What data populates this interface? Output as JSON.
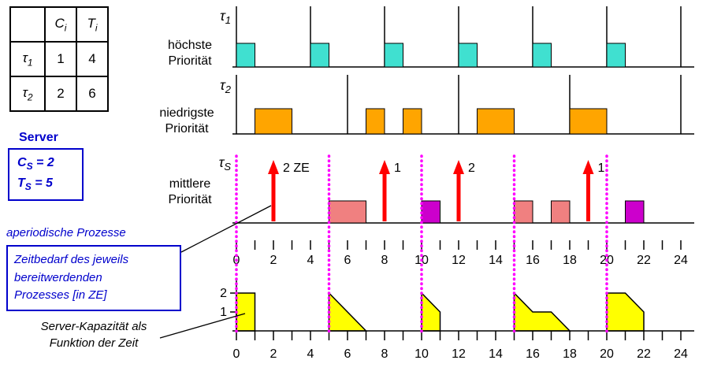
{
  "colors": {
    "tau1_block": "#40E0D0",
    "tau2_block": "#FFA500",
    "server_block_2ze": "#F08080",
    "server_block_1ze": "#CC00CC",
    "request_arrow": "#FF0000",
    "server_period_line": "#FF00FF",
    "capacity_fill": "#FFFF00",
    "annotation_blue": "#0000CC"
  },
  "table": {
    "headers": [
      {
        "base": "C",
        "sub": "i"
      },
      {
        "base": "T",
        "sub": "i"
      }
    ],
    "rows": [
      {
        "task_base": "τ",
        "task_sub": "1",
        "c": "1",
        "t": "4"
      },
      {
        "task_base": "τ",
        "task_sub": "2",
        "c": "2",
        "t": "6"
      }
    ]
  },
  "server_panel": {
    "title": "Server",
    "lines": [
      {
        "base": "C",
        "sub": "S",
        "rest": " = 2"
      },
      {
        "base": "T",
        "sub": "S",
        "rest": " = 5"
      }
    ]
  },
  "notes": {
    "aperiodic": "aperiodische Prozesse",
    "demand_box": [
      "Zeitbedarf des jeweils",
      "bereitwerdenden",
      "Prozesses [in ZE]"
    ],
    "capacity_note": [
      "Server-Kapazität als",
      "Funktion der Zeit"
    ]
  },
  "timelines": [
    {
      "id": "tau1",
      "label_base": "τ",
      "label_sub": "1",
      "priority": [
        "höchste",
        "Priorität"
      ],
      "arrivals": [
        0,
        4,
        8,
        12,
        16,
        20,
        24
      ],
      "blocks": [
        {
          "start": 0,
          "end": 1
        },
        {
          "start": 4,
          "end": 5
        },
        {
          "start": 8,
          "end": 9
        },
        {
          "start": 12,
          "end": 13
        },
        {
          "start": 16,
          "end": 17
        },
        {
          "start": 20,
          "end": 21
        }
      ],
      "block_color": "#40E0D0"
    },
    {
      "id": "tau2",
      "label_base": "τ",
      "label_sub": "2",
      "priority": [
        "niedrigste",
        "Priorität"
      ],
      "arrivals": [
        0,
        6,
        12,
        18,
        24
      ],
      "blocks": [
        {
          "start": 1,
          "end": 3
        },
        {
          "start": 7,
          "end": 8
        },
        {
          "start": 9,
          "end": 10
        },
        {
          "start": 13,
          "end": 15
        },
        {
          "start": 18,
          "end": 20
        }
      ],
      "block_color": "#FFA500"
    },
    {
      "id": "tauS",
      "label_base": "τ",
      "label_sub": "S",
      "priority": [
        "mittlere",
        "Priorität"
      ],
      "arrivals": [],
      "blocks": [
        {
          "start": 5,
          "end": 7,
          "color": "#F08080"
        },
        {
          "start": 10,
          "end": 11,
          "color": "#CC00CC"
        },
        {
          "start": 15,
          "end": 16,
          "color": "#F08080"
        },
        {
          "start": 17,
          "end": 18,
          "color": "#F08080"
        },
        {
          "start": 21,
          "end": 22,
          "color": "#CC00CC"
        }
      ]
    }
  ],
  "requests": [
    {
      "time": 2,
      "label": "2 ZE"
    },
    {
      "time": 8,
      "label": "1"
    },
    {
      "time": 12,
      "label": "2"
    },
    {
      "time": 19,
      "label": "1"
    }
  ],
  "server_period_lines": [
    0,
    5,
    10,
    15,
    20
  ],
  "time_axis": {
    "min": 0,
    "max": 24,
    "tick_every": 1,
    "label_every": 2,
    "labels": [
      "0",
      "2",
      "4",
      "6",
      "8",
      "10",
      "12",
      "14",
      "16",
      "18",
      "20",
      "22",
      "24"
    ]
  },
  "capacity_plot": {
    "y_axis_labels": [
      {
        "value": 2,
        "label": "2"
      },
      {
        "value": 1,
        "label": "1"
      }
    ],
    "shapes": [
      [
        [
          0,
          0
        ],
        [
          0,
          2
        ],
        [
          1,
          2
        ],
        [
          1,
          0
        ]
      ],
      [
        [
          5,
          0
        ],
        [
          5,
          2
        ],
        [
          7,
          0
        ]
      ],
      [
        [
          10,
          0
        ],
        [
          10,
          2
        ],
        [
          11,
          1
        ],
        [
          11,
          0
        ]
      ],
      [
        [
          15,
          0
        ],
        [
          15,
          2
        ],
        [
          16,
          1
        ],
        [
          17,
          1
        ],
        [
          18,
          0
        ]
      ],
      [
        [
          20,
          0
        ],
        [
          20,
          2
        ],
        [
          21,
          2
        ],
        [
          22,
          1
        ],
        [
          22,
          0
        ]
      ]
    ]
  }
}
